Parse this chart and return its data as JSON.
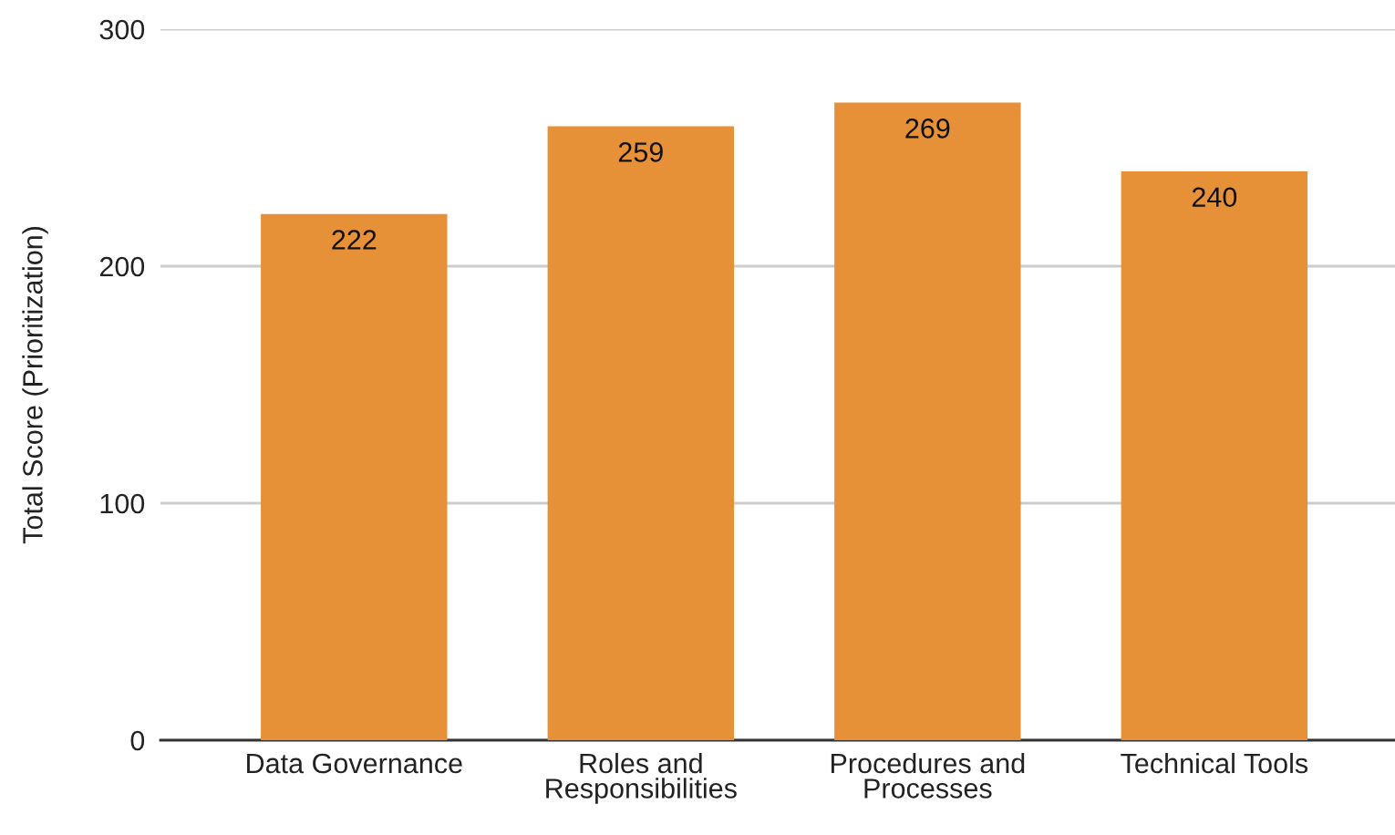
{
  "chart_data": {
    "type": "bar",
    "ylabel": "Total Score (Prioritization)",
    "categories": [
      "Data Governance",
      "Roles and\nResponsibilities",
      "Procedures and\nProcesses",
      "Technical Tools"
    ],
    "values": [
      222,
      259,
      269,
      240
    ],
    "color": "#e69138",
    "ylim": [
      0,
      300
    ],
    "yticks": [
      0,
      100,
      200,
      300
    ],
    "grid": "y",
    "data_labels": true
  }
}
